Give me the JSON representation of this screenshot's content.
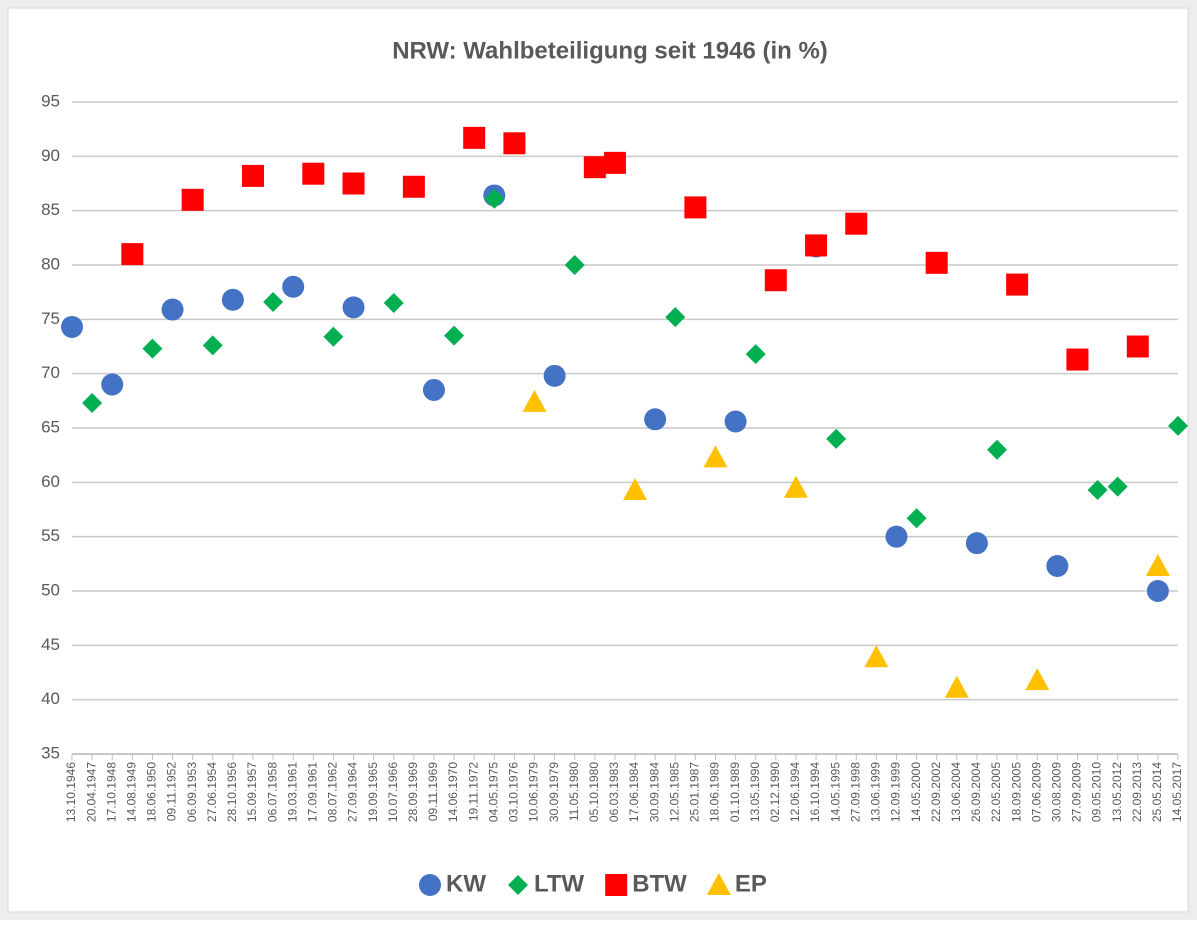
{
  "chart_data": {
    "type": "scatter",
    "title": "NRW: Wahlbeteiligung seit 1946 (in %)",
    "categories": [
      "13.10.1946",
      "20.04.1947",
      "17.10.1948",
      "14.08.1949",
      "18.06.1950",
      "09.11.1952",
      "06.09.1953",
      "27.06.1954",
      "28.10.1956",
      "15.09.1957",
      "06.07.1958",
      "19.03.1961",
      "17.09.1961",
      "08.07.1962",
      "27.09.1964",
      "19.09.1965",
      "10.07.1966",
      "28.09.1969",
      "09.11.1969",
      "14.06.1970",
      "19.11.1972",
      "04.05.1975",
      "03.10.1976",
      "10.06.1979",
      "30.09.1979",
      "11.05.1980",
      "05.10.1980",
      "06.03.1983",
      "17.06.1984",
      "30.09.1984",
      "12.05.1985",
      "25.01.1987",
      "18.06.1989",
      "01.10.1989",
      "13.05.1990",
      "02.12.1990",
      "12.06.1994",
      "16.10.1994",
      "14.05.1995",
      "27.09.1998",
      "13.06.1999",
      "12.09.1999",
      "14.05.2000",
      "22.09.2002",
      "13.06.2004",
      "26.09.2004",
      "22.05.2005",
      "18.09.2005",
      "07.06.2009",
      "30.08.2009",
      "27.09.2009",
      "09.05.2010",
      "13.05.2012",
      "22.09.2013",
      "25.05.2014",
      "14.05.2017"
    ],
    "series": [
      {
        "name": "KW",
        "color": "#4472c4",
        "marker": "circle",
        "values": [
          74.3,
          null,
          69,
          null,
          null,
          75.9,
          null,
          null,
          76.8,
          null,
          null,
          78,
          null,
          null,
          76.1,
          null,
          null,
          null,
          68.5,
          null,
          null,
          86.4,
          null,
          null,
          69.8,
          null,
          null,
          null,
          null,
          65.8,
          null,
          null,
          null,
          65.6,
          null,
          null,
          null,
          81.7,
          null,
          null,
          null,
          55,
          null,
          null,
          null,
          54.4,
          null,
          null,
          null,
          52.3,
          null,
          null,
          null,
          null,
          50,
          null
        ]
      },
      {
        "name": "LTW",
        "color": "#00b050",
        "marker": "diamond",
        "values": [
          null,
          67.3,
          null,
          null,
          72.3,
          null,
          null,
          72.6,
          null,
          null,
          76.6,
          null,
          null,
          73.4,
          null,
          null,
          76.5,
          null,
          null,
          73.5,
          null,
          86.1,
          null,
          null,
          null,
          80,
          null,
          null,
          null,
          null,
          75.2,
          null,
          null,
          null,
          71.8,
          null,
          null,
          null,
          64,
          null,
          null,
          null,
          56.7,
          null,
          null,
          null,
          63,
          null,
          null,
          null,
          null,
          59.3,
          59.6,
          null,
          null,
          65.2
        ]
      },
      {
        "name": "BTW",
        "color": "#ff0000",
        "marker": "square",
        "values": [
          null,
          null,
          null,
          81,
          null,
          null,
          86,
          null,
          null,
          88.2,
          null,
          null,
          88.4,
          null,
          87.5,
          null,
          null,
          87.2,
          null,
          null,
          91.7,
          null,
          91.2,
          null,
          null,
          null,
          89,
          89.4,
          null,
          null,
          null,
          85.3,
          null,
          null,
          null,
          78.6,
          null,
          81.8,
          null,
          83.8,
          null,
          null,
          null,
          80.2,
          null,
          null,
          null,
          78.2,
          null,
          null,
          71.3,
          null,
          null,
          72.5,
          null,
          null
        ]
      },
      {
        "name": "EP",
        "color": "#ffc000",
        "marker": "triangle",
        "values": [
          null,
          null,
          null,
          null,
          null,
          null,
          null,
          null,
          null,
          null,
          null,
          null,
          null,
          null,
          null,
          null,
          null,
          null,
          null,
          null,
          null,
          null,
          null,
          67.4,
          null,
          null,
          null,
          null,
          59.3,
          null,
          null,
          null,
          62.3,
          null,
          null,
          null,
          59.5,
          null,
          null,
          null,
          43.9,
          null,
          null,
          null,
          41.1,
          null,
          null,
          null,
          41.8,
          null,
          null,
          null,
          null,
          null,
          52.3,
          null
        ]
      }
    ],
    "ylim": [
      35,
      95
    ],
    "yticks": [
      35,
      40,
      45,
      50,
      55,
      60,
      65,
      70,
      75,
      80,
      85,
      90,
      95
    ],
    "grid": true,
    "legend": "bottom"
  }
}
